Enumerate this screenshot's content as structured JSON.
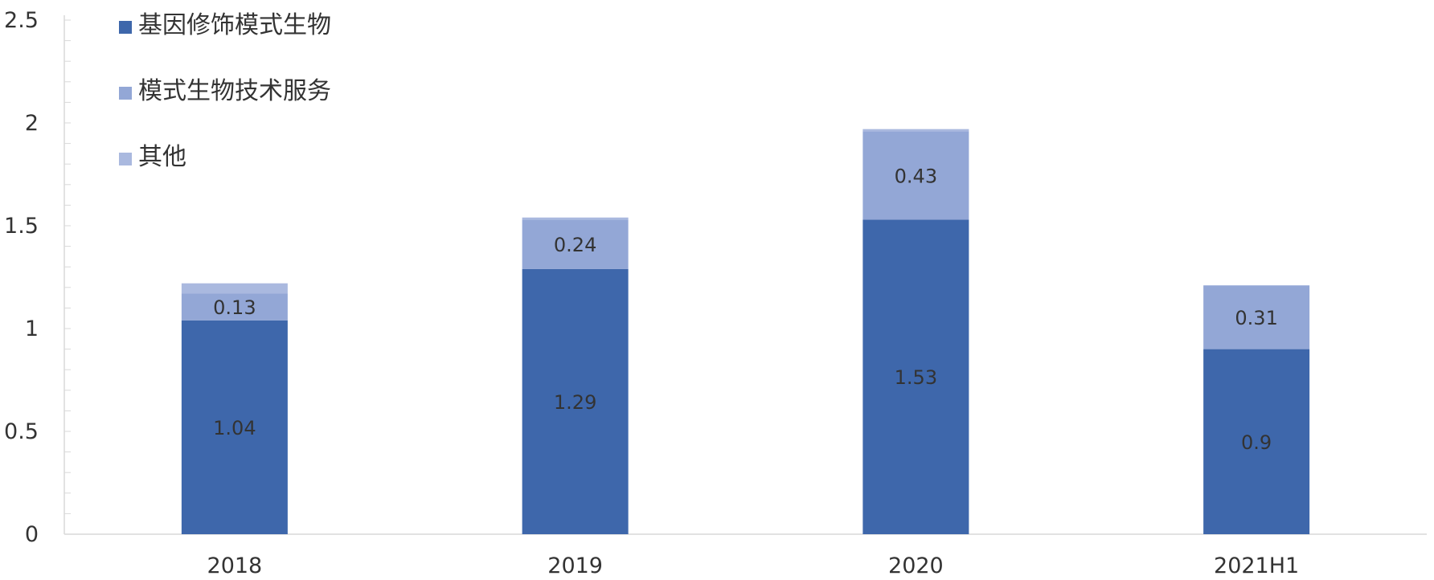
{
  "chart_data": {
    "type": "bar",
    "stacked": true,
    "title": "",
    "xlabel": "",
    "ylabel": "",
    "categories": [
      "2018",
      "2019",
      "2020",
      "2021H1"
    ],
    "series": [
      {
        "name": "基因修饰模式生物",
        "values": [
          1.04,
          1.29,
          1.53,
          0.9
        ],
        "labels": [
          "1.04",
          "1.29",
          "1.53",
          "0.9"
        ],
        "color": "#3e67ab"
      },
      {
        "name": "模式生物技术服务",
        "values": [
          0.13,
          0.24,
          0.43,
          0.31
        ],
        "labels": [
          "0.13",
          "0.24",
          "0.43",
          "0.31"
        ],
        "color": "#93a7d6"
      },
      {
        "name": "其他",
        "values": [
          0.05,
          0.01,
          0.01,
          0
        ],
        "labels": [
          "",
          "",
          "",
          ""
        ],
        "color": "#aab9df"
      }
    ],
    "ylim": [
      0,
      2.5
    ],
    "y_ticks": [
      "0",
      "0.5",
      "1",
      "1.5",
      "2",
      "2.5"
    ],
    "grid": false,
    "legend_placement": "top-left"
  }
}
